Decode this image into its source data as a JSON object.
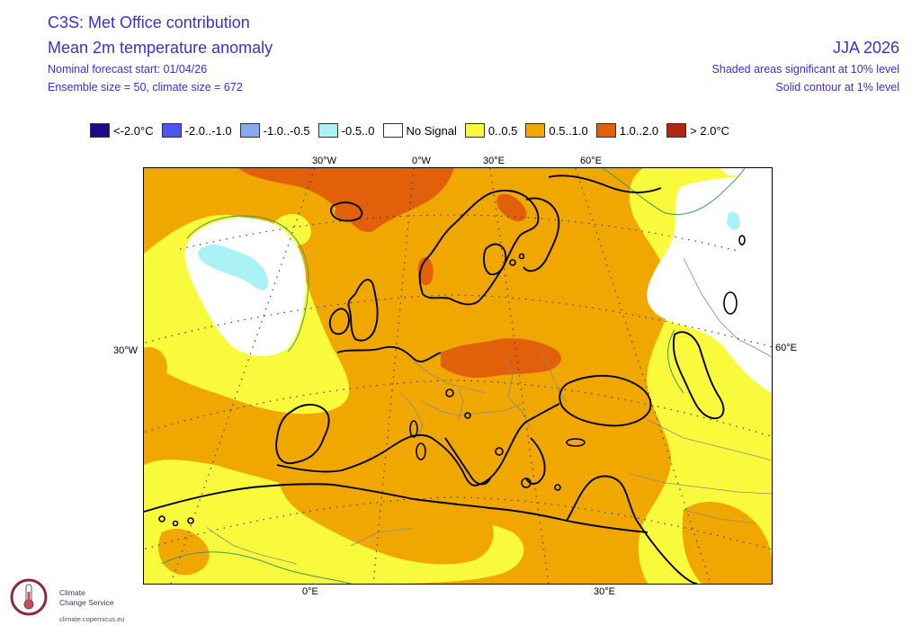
{
  "header": {
    "title_line1": "C3S: Met Office contribution",
    "title_line2": "Mean 2m temperature anomaly",
    "forecast_start": "Nominal forecast start: 01/04/26",
    "ensemble": "Ensemble size = 50, climate size = 672",
    "season": "JJA 2026",
    "significance": "Shaded areas significant at 10% level",
    "contour": "Solid contour at 1% level"
  },
  "legend": {
    "items": [
      {
        "label": "<-2.0°C",
        "color": "#1a0b8c"
      },
      {
        "label": "-2.0..-1.0",
        "color": "#4a56f0"
      },
      {
        "label": "-1.0..-0.5",
        "color": "#88aaf0"
      },
      {
        "label": "-0.5..0",
        "color": "#aaf2f6"
      },
      {
        "label": "No Signal",
        "color": "#ffffff"
      },
      {
        "label": "0..0.5",
        "color": "#fafa3c"
      },
      {
        "label": "0.5..1.0",
        "color": "#f0a800"
      },
      {
        "label": "1.0..2.0",
        "color": "#e2600a"
      },
      {
        "label": "> 2.0°C",
        "color": "#b02810"
      }
    ]
  },
  "map": {
    "graticule_labels": {
      "top_30w": "30°W",
      "top_0w": "0°W",
      "top_30e": "30°E",
      "top_60e": "60°E",
      "left_30w": "30°W",
      "right_60e": "60°E",
      "bottom_0e": "0°E",
      "bottom_30e": "30°E"
    },
    "colors": {
      "land_outline": "#000000",
      "graticule": "#333333",
      "sig_contour": "#3f9a5a"
    }
  },
  "logo": {
    "line1": "Climate",
    "line2": "Change Service",
    "url": "climate.copernicus.eu"
  }
}
